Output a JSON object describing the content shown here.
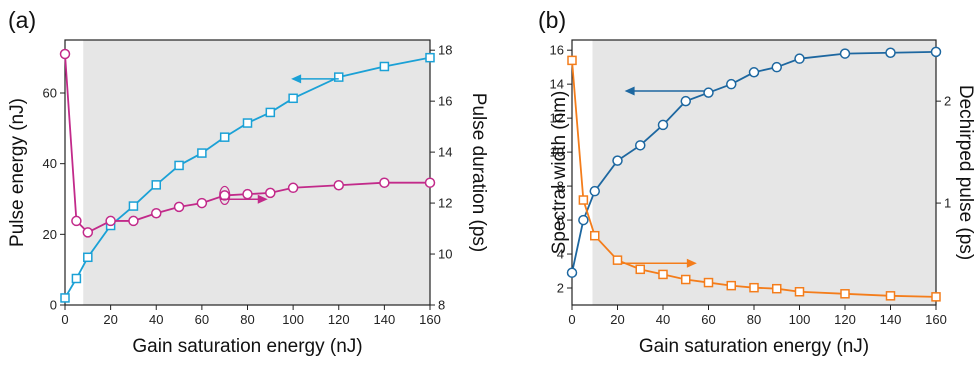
{
  "figure": {
    "panels": [
      {
        "label": "(a)"
      },
      {
        "label": "(b)"
      }
    ]
  },
  "chart_data": [
    {
      "type": "line",
      "panel_label": "(a)",
      "xlabel": "Gain saturation energy (nJ)",
      "ylabel": "Pulse energy (nJ)",
      "y2label": "Pulse duration (ps)",
      "xlim": [
        0,
        160
      ],
      "ylim": [
        0,
        75
      ],
      "y2lim": [
        8,
        18.4
      ],
      "xticks": [
        0,
        20,
        40,
        60,
        80,
        100,
        120,
        140,
        160
      ],
      "yticks": [
        0,
        20,
        40,
        60
      ],
      "y2ticks": [
        8,
        10,
        12,
        14,
        16,
        18
      ],
      "shaded_region_start": 8,
      "series": [
        {
          "axis": "left",
          "marker": "square",
          "color": "#1ba1d6",
          "x": [
            0,
            5,
            10,
            20,
            30,
            40,
            50,
            60,
            70,
            80,
            90,
            100,
            120,
            140,
            160
          ],
          "values": [
            2,
            7.5,
            13.5,
            22.5,
            28,
            34,
            39.5,
            43,
            47.5,
            51.5,
            54.5,
            58.5,
            64.5,
            67.5,
            70
          ]
        },
        {
          "axis": "right",
          "marker": "circle",
          "color": "#c22a8a",
          "x": [
            0,
            5,
            10,
            20,
            30,
            40,
            50,
            60,
            70,
            80,
            90,
            100,
            120,
            140,
            160
          ],
          "values": [
            17.85,
            11.3,
            10.85,
            11.3,
            11.3,
            11.6,
            11.85,
            12.0,
            12.3,
            12.35,
            12.4,
            12.6,
            12.7,
            12.8,
            12.8
          ]
        }
      ]
    },
    {
      "type": "line",
      "panel_label": "(b)",
      "xlabel": "Gain saturation energy (nJ)",
      "ylabel": "Spectral width (nm)",
      "y2label": "Dechirped pulse (ps)",
      "xlim": [
        0,
        160
      ],
      "ylim": [
        1,
        16.6
      ],
      "y2lim": [
        0,
        2.6
      ],
      "xticks": [
        0,
        20,
        40,
        60,
        80,
        100,
        120,
        140,
        160
      ],
      "yticks": [
        2,
        4,
        6,
        8,
        10,
        12,
        14,
        16
      ],
      "y2ticks": [
        1,
        2
      ],
      "shaded_region_start": 9,
      "series": [
        {
          "axis": "left",
          "marker": "circle",
          "color": "#1d67a0",
          "x": [
            0,
            5,
            10,
            20,
            30,
            40,
            50,
            60,
            70,
            80,
            90,
            100,
            120,
            140,
            160
          ],
          "values": [
            2.9,
            6.0,
            7.7,
            9.5,
            10.4,
            11.6,
            13.0,
            13.5,
            14.0,
            14.7,
            15.0,
            15.5,
            15.8,
            15.85,
            15.9
          ]
        },
        {
          "axis": "right",
          "marker": "square",
          "color": "#f47d1b",
          "x": [
            0,
            5,
            10,
            20,
            30,
            40,
            50,
            60,
            70,
            80,
            90,
            100,
            120,
            140,
            160
          ],
          "values": [
            2.4,
            1.03,
            0.68,
            0.44,
            0.35,
            0.3,
            0.25,
            0.22,
            0.19,
            0.17,
            0.16,
            0.13,
            0.11,
            0.09,
            0.08
          ]
        }
      ]
    }
  ]
}
